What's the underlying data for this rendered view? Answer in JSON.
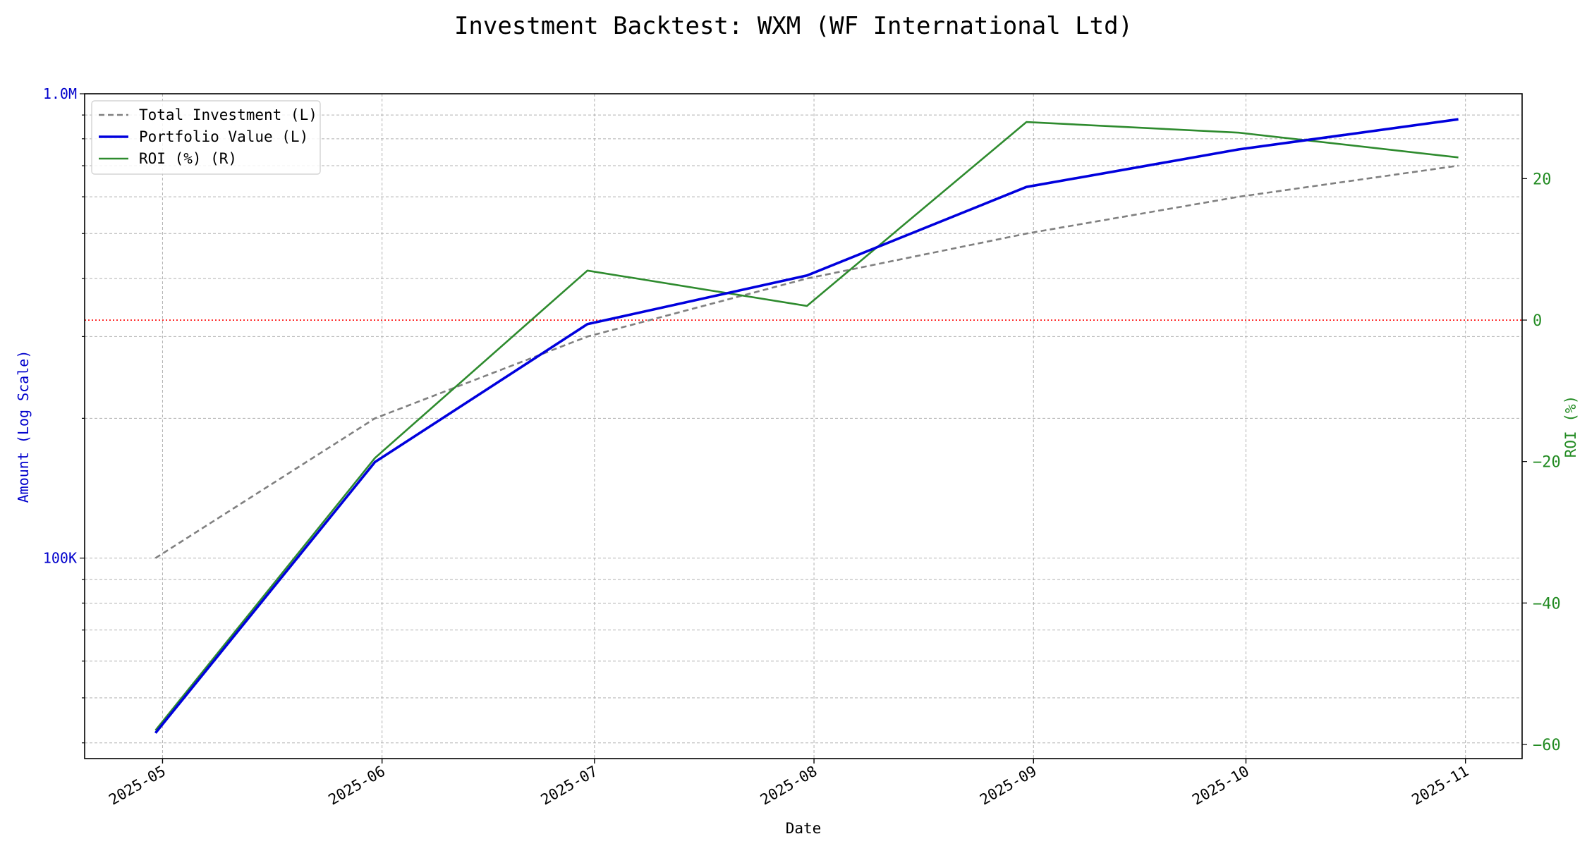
{
  "chart_data": {
    "type": "line",
    "title": "Investment Backtest: WXM (WF International Ltd)",
    "xlabel": "Date",
    "ylabel_left": "Amount (Log Scale)",
    "ylabel_right": "ROI (%)",
    "y_left_scale": "log",
    "y_left_ticks": [
      {
        "value": 100000,
        "label": "100K"
      },
      {
        "value": 1000000,
        "label": "1.0M"
      }
    ],
    "y_right_ticks": [
      {
        "value": -60,
        "label": "−60"
      },
      {
        "value": -40,
        "label": "−40"
      },
      {
        "value": -20,
        "label": "−20"
      },
      {
        "value": 0,
        "label": "0"
      },
      {
        "value": 20,
        "label": "20"
      }
    ],
    "x_ticks": [
      {
        "date": "2025-05-01",
        "label": "2025-05"
      },
      {
        "date": "2025-06-01",
        "label": "2025-06"
      },
      {
        "date": "2025-07-01",
        "label": "2025-07"
      },
      {
        "date": "2025-08-01",
        "label": "2025-08"
      },
      {
        "date": "2025-09-01",
        "label": "2025-09"
      },
      {
        "date": "2025-10-01",
        "label": "2025-10"
      },
      {
        "date": "2025-11-01",
        "label": "2025-11"
      }
    ],
    "x": [
      "2025-04-30",
      "2025-05-31",
      "2025-06-30",
      "2025-07-31",
      "2025-08-31",
      "2025-09-30",
      "2025-10-31"
    ],
    "series": [
      {
        "name": "Total Investment (L)",
        "axis": "left",
        "color": "#808080",
        "style": "dashed",
        "values": [
          100000,
          200000,
          300000,
          400000,
          500000,
          600000,
          700000
        ]
      },
      {
        "name": "Portfolio Value (L)",
        "axis": "left",
        "color": "#0000dd",
        "style": "solid",
        "values": [
          42000,
          161000,
          319000,
          406000,
          630000,
          759000,
          881000
        ]
      },
      {
        "name": "ROI (%) (R)",
        "axis": "right",
        "color": "#2e8b2e",
        "style": "solid",
        "values": [
          -58,
          -19.5,
          7,
          2,
          28,
          26.5,
          23
        ]
      }
    ],
    "reference_line": {
      "axis": "right",
      "value": 0,
      "color": "#ff0000",
      "style": "dotted"
    },
    "ylim_left": [
      37000,
      1000000
    ],
    "ylim_right": [
      -62,
      32
    ],
    "grid": true,
    "legend_position": "top-left"
  }
}
